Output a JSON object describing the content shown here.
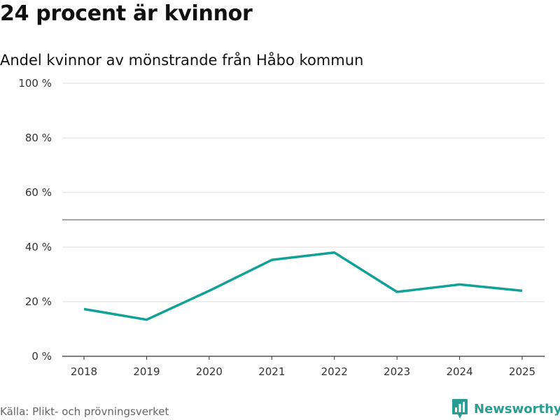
{
  "title": "24 procent är kvinnor",
  "subtitle": "Andel kvinnor av mönstrande från Håbo kommun",
  "source": "Källa: Plikt- och prövningsverket",
  "brand": {
    "name": "Newsworthy",
    "icon": "newsworthy-logo-icon"
  },
  "colors": {
    "line": "#11a197",
    "grid": "#dddddd",
    "reference": "#888888",
    "brand": "#2a9d92"
  },
  "chart_data": {
    "type": "line",
    "title": "24 procent är kvinnor",
    "subtitle": "Andel kvinnor av mönstrande från Håbo kommun",
    "xlabel": "",
    "ylabel": "",
    "categories": [
      "2018",
      "2019",
      "2020",
      "2021",
      "2022",
      "2023",
      "2024",
      "2025"
    ],
    "series": [
      {
        "name": "Andel kvinnor",
        "values": [
          17.3,
          13.4,
          24.0,
          35.3,
          38.0,
          23.6,
          26.3,
          24.0
        ]
      }
    ],
    "ylim": [
      0,
      100
    ],
    "yticks": [
      0,
      20,
      40,
      60,
      80,
      100
    ],
    "ytick_labels": [
      "0 %",
      "20 %",
      "40 %",
      "60 %",
      "80 %",
      "100 %"
    ],
    "reference_line": 50,
    "grid": true
  }
}
